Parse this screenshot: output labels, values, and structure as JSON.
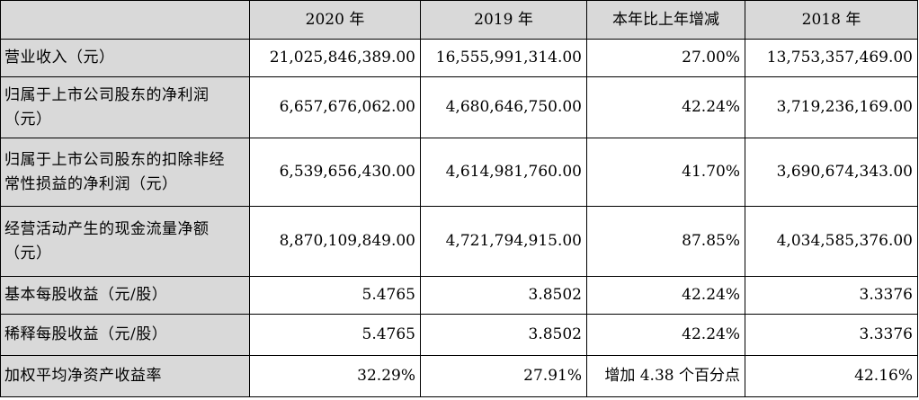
{
  "table": {
    "headers": [
      "",
      "2020 年",
      "2019 年",
      "本年比上年增减",
      "2018 年"
    ],
    "rows": [
      {
        "label_lines": [
          "营业收入（元）"
        ],
        "values": [
          "21,025,846,389.00",
          "16,555,991,314.00",
          "27.00%",
          "13,753,357,469.00"
        ]
      },
      {
        "label_lines": [
          "归属于上市公司股东的净利润",
          "（元）"
        ],
        "values": [
          "6,657,676,062.00",
          "4,680,646,750.00",
          "42.24%",
          "3,719,236,169.00"
        ]
      },
      {
        "label_lines": [
          "归属于上市公司股东的扣除非经",
          "常性损益的净利润（元）"
        ],
        "values": [
          "6,539,656,430.00",
          "4,614,981,760.00",
          "41.70%",
          "3,690,674,343.00"
        ]
      },
      {
        "label_lines": [
          "经营活动产生的现金流量净额",
          "（元）"
        ],
        "values": [
          "8,870,109,849.00",
          "4,721,794,915.00",
          "87.85%",
          "4,034,585,376.00"
        ]
      },
      {
        "label_lines": [
          "基本每股收益（元/股）"
        ],
        "values": [
          "5.4765",
          "3.8502",
          "42.24%",
          "3.3376"
        ]
      },
      {
        "label_lines": [
          "稀释每股收益（元/股）"
        ],
        "values": [
          "5.4765",
          "3.8502",
          "42.24%",
          "3.3376"
        ]
      },
      {
        "label_lines": [
          "加权平均净资产收益率"
        ],
        "values": [
          "32.29%",
          "27.91%",
          "增加 4.38 个百分点",
          "42.16%"
        ]
      }
    ]
  }
}
